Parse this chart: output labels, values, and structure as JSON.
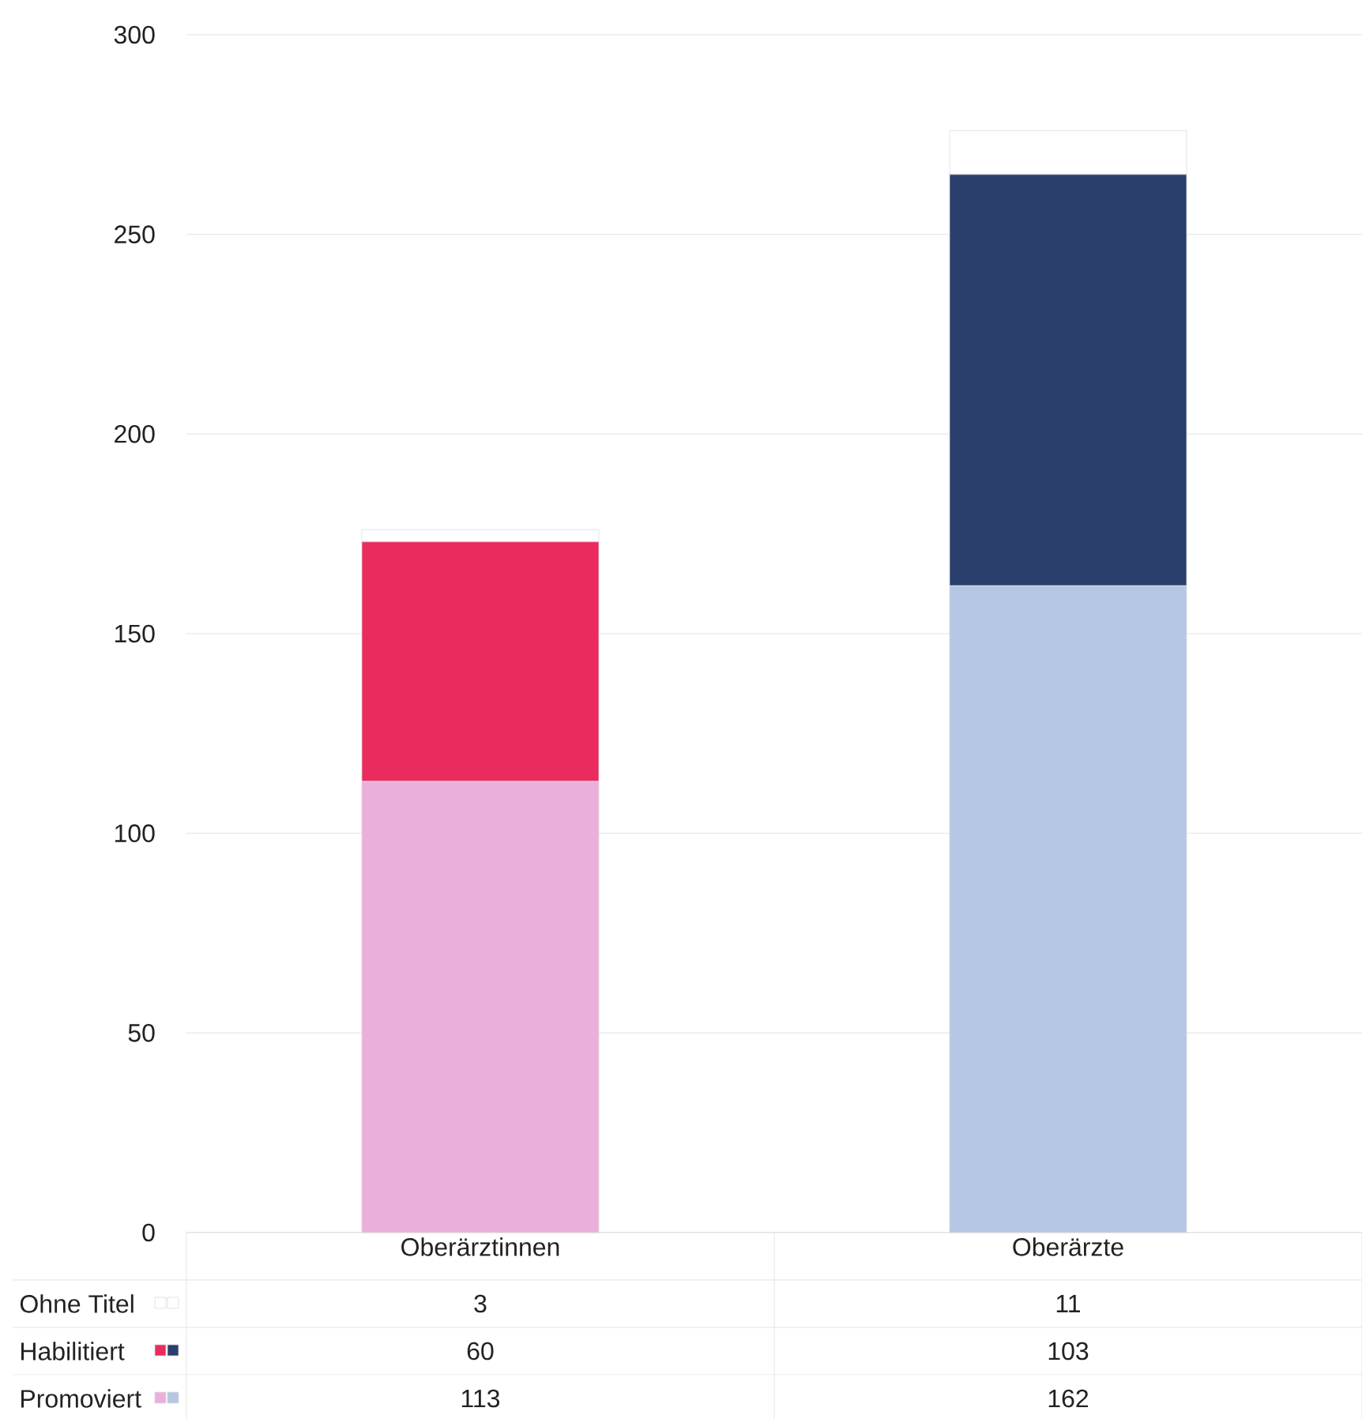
{
  "chart_data": {
    "type": "bar",
    "stacked": true,
    "categories": [
      "Oberärztinnen",
      "Oberärzte"
    ],
    "series": [
      {
        "name": "Promoviert",
        "colors": [
          "#eab0db",
          "#b5c7e5"
        ],
        "values": [
          113,
          162
        ]
      },
      {
        "name": "Habilitiert",
        "colors": [
          "#e92b5e",
          "#2a3f6b"
        ],
        "values": [
          60,
          103
        ]
      },
      {
        "name": "Ohne Titel",
        "colors": [
          "#ffffff",
          "#ffffff"
        ],
        "values": [
          3,
          11
        ]
      }
    ],
    "ylim": [
      0,
      300
    ],
    "yticks": [
      0,
      50,
      100,
      150,
      200,
      250,
      300
    ],
    "grid": "y",
    "data_labels": true,
    "legend": "bottom left"
  }
}
